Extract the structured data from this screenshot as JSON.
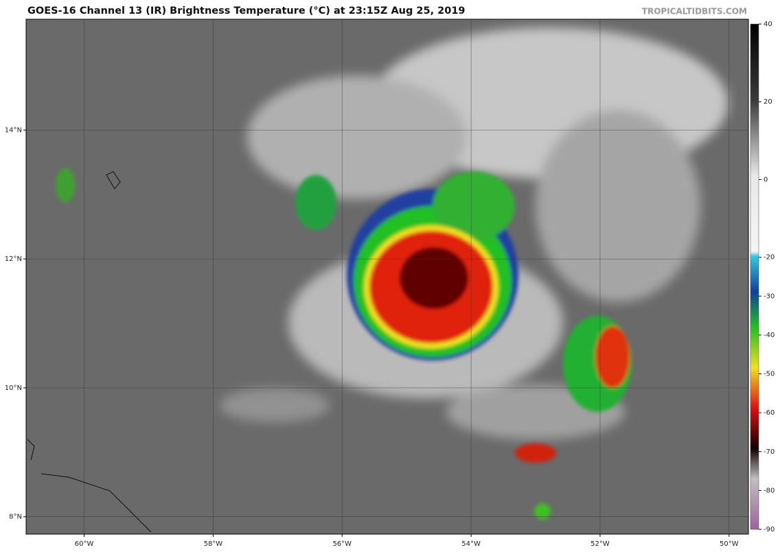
{
  "header": {
    "title": "GOES-16 Channel 13 (IR) Brightness Temperature (°C) at 23:15Z Aug 25, 2019",
    "source": "TROPICALTIDBITS.COM"
  },
  "map": {
    "xlim": [
      -60.9,
      -49.7
    ],
    "ylim": [
      7.73,
      15.72
    ],
    "lon_ticks": [
      {
        "value": -60,
        "label": "60°W"
      },
      {
        "value": -58,
        "label": "58°W"
      },
      {
        "value": -56,
        "label": "56°W"
      },
      {
        "value": -54,
        "label": "54°W"
      },
      {
        "value": -52,
        "label": "52°W"
      },
      {
        "value": -50,
        "label": "50°W"
      }
    ],
    "lat_ticks": [
      {
        "value": 14,
        "label": "14°N"
      },
      {
        "value": 12,
        "label": "12°N"
      },
      {
        "value": 10,
        "label": "10°N"
      },
      {
        "value": 8,
        "label": "8°N"
      }
    ]
  },
  "colorbar": {
    "range": [
      40,
      -90
    ],
    "ticks": [
      40,
      20,
      0,
      -20,
      -30,
      -40,
      -50,
      -60,
      -70,
      -80,
      -90
    ]
  }
}
